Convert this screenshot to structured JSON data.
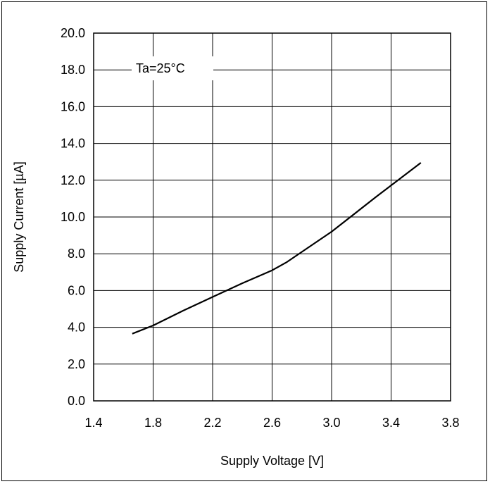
{
  "chart_data": {
    "type": "line",
    "title": "",
    "xlabel": "Supply Voltage [V]",
    "ylabel": "Supply Current [µA]",
    "xlim": [
      1.4,
      3.8
    ],
    "ylim": [
      0.0,
      20.0
    ],
    "x_ticks": [
      "1.4",
      "1.8",
      "2.2",
      "2.6",
      "3.0",
      "3.4",
      "3.8"
    ],
    "y_ticks": [
      "0.0",
      "2.0",
      "4.0",
      "6.0",
      "8.0",
      "10.0",
      "12.0",
      "14.0",
      "16.0",
      "18.0",
      "20.0"
    ],
    "grid": true,
    "annotation": "Ta=25°C",
    "series": [
      {
        "color": "#000000",
        "x": [
          1.66,
          1.8,
          2.0,
          2.2,
          2.4,
          2.6,
          2.7,
          3.0,
          3.3,
          3.6
        ],
        "y": [
          3.65,
          4.1,
          4.9,
          5.65,
          6.4,
          7.1,
          7.55,
          9.2,
          11.1,
          12.95
        ]
      }
    ]
  }
}
